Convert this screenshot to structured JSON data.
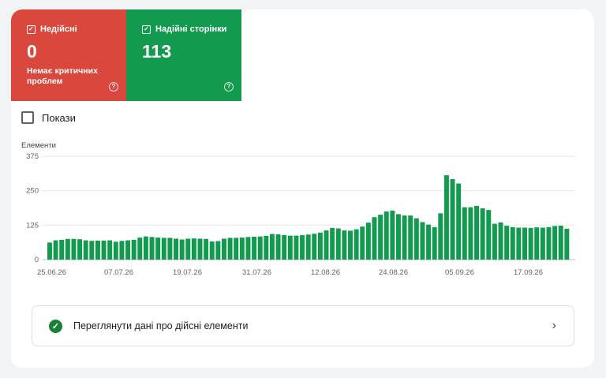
{
  "tiles": {
    "invalid": {
      "label": "Недійсні",
      "value": "0",
      "subtitle": "Немає критичних проблем",
      "color": "#d9473d",
      "icon": "help-icon"
    },
    "valid": {
      "label": "Надійні сторінки",
      "value": "113",
      "color": "#129b4f",
      "icon": "help-icon"
    }
  },
  "impressions": {
    "label": "Покази",
    "checked": false
  },
  "chart_data": {
    "type": "bar",
    "ylabel": "Елементи",
    "yticks": [
      "375",
      "250",
      "125",
      "0"
    ],
    "ylim": [
      0,
      375
    ],
    "xticks": [
      "25.06.26",
      "07.07.26",
      "19.07.26",
      "31.07.26",
      "12.08.26",
      "24.08.26",
      "05.09.26",
      "17.09.26"
    ],
    "grid": true,
    "color": "#129b4f",
    "values": [
      62,
      70,
      72,
      75,
      75,
      74,
      70,
      68,
      69,
      69,
      70,
      65,
      68,
      70,
      72,
      80,
      84,
      82,
      80,
      79,
      79,
      76,
      73,
      76,
      77,
      76,
      75,
      66,
      67,
      76,
      79,
      79,
      80,
      82,
      83,
      84,
      86,
      93,
      92,
      89,
      87,
      87,
      89,
      91,
      94,
      98,
      106,
      115,
      113,
      106,
      105,
      110,
      120,
      134,
      154,
      163,
      175,
      178,
      165,
      160,
      160,
      150,
      136,
      127,
      118,
      168,
      306,
      292,
      276,
      190,
      190,
      195,
      186,
      180,
      130,
      135,
      123,
      118,
      116,
      116,
      115,
      117,
      116,
      118,
      122,
      123,
      112
    ]
  },
  "details": {
    "label": "Переглянути дані про дійсні елементи",
    "icon": "check-circle-icon",
    "action_icon": "chevron-right-icon"
  }
}
